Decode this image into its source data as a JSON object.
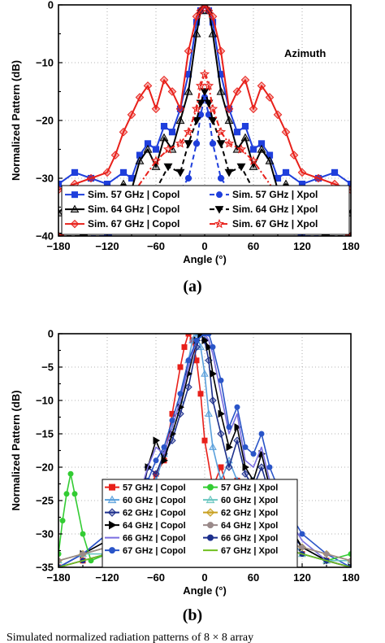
{
  "chart_data": [
    {
      "type": "line",
      "panel_label": "(a)",
      "xlabel": "Angle (°)",
      "ylabel": "Normalized Pattern (dB)",
      "xlim": [
        -180,
        180
      ],
      "ylim": [
        -40,
        0
      ],
      "xticks": [
        -180,
        -120,
        -60,
        0,
        60,
        120,
        180
      ],
      "yticks": [
        -40,
        -30,
        -20,
        -10,
        0
      ],
      "annotation": "Azimuth",
      "grid": "dotted",
      "legend_placement": "bottom",
      "legend_columns": 2,
      "series": [
        {
          "name": "Sim. 57 GHz | Copol",
          "color": "#1f3fdc",
          "marker": "square",
          "dash": "solid",
          "x": [
            -180,
            -160,
            -140,
            -120,
            -100,
            -90,
            -80,
            -70,
            -60,
            -50,
            -40,
            -30,
            -20,
            -10,
            -5,
            0,
            5,
            10,
            20,
            30,
            40,
            50,
            60,
            70,
            80,
            90,
            100,
            120,
            140,
            160,
            180
          ],
          "y": [
            -31,
            -29,
            -30,
            -31,
            -29,
            -30,
            -26,
            -24,
            -25,
            -21,
            -22,
            -18,
            -12,
            -3,
            -1,
            0,
            -1,
            -3,
            -12,
            -18,
            -22,
            -21,
            -25,
            -24,
            -26,
            -30,
            -29,
            -31,
            -30,
            -29,
            -31
          ]
        },
        {
          "name": "Sim. 57 GHz | Xpol",
          "color": "#1f3fdc",
          "marker": "circle",
          "dash": "dash",
          "x": [
            -180,
            -150,
            -120,
            -90,
            -60,
            -45,
            -30,
            -20,
            -10,
            -5,
            0,
            5,
            10,
            20,
            30,
            45,
            60,
            90,
            120,
            150,
            180
          ],
          "y": [
            -40,
            -40,
            -40,
            -39,
            -36,
            -34,
            -32,
            -30,
            -24,
            -19,
            -16,
            -19,
            -24,
            -30,
            -32,
            -34,
            -36,
            -39,
            -40,
            -40,
            -40
          ]
        },
        {
          "name": "Sim. 64 GHz | Copol",
          "color": "#000000",
          "marker": "triangle",
          "dash": "solid",
          "x": [
            -180,
            -160,
            -140,
            -120,
            -100,
            -90,
            -80,
            -70,
            -60,
            -50,
            -40,
            -30,
            -20,
            -10,
            -5,
            0,
            5,
            10,
            20,
            30,
            40,
            50,
            60,
            70,
            80,
            90,
            100,
            120,
            140,
            160,
            180
          ],
          "y": [
            -36,
            -33,
            -34,
            -33,
            -31,
            -32,
            -27,
            -25,
            -28,
            -23,
            -25,
            -20,
            -15,
            -5,
            -1,
            0,
            -1,
            -5,
            -15,
            -20,
            -25,
            -23,
            -28,
            -25,
            -27,
            -32,
            -31,
            -33,
            -34,
            -33,
            -36
          ]
        },
        {
          "name": "Sim. 64 GHz | Xpol",
          "color": "#000000",
          "marker": "triangle-down",
          "dash": "dash",
          "x": [
            -180,
            -150,
            -120,
            -90,
            -60,
            -45,
            -30,
            -20,
            -10,
            -5,
            0,
            5,
            10,
            20,
            30,
            45,
            60,
            90,
            120,
            150,
            180
          ],
          "y": [
            -40,
            -40,
            -39,
            -37,
            -32,
            -28,
            -29,
            -24,
            -20,
            -17,
            -15,
            -17,
            -20,
            -24,
            -29,
            -28,
            -32,
            -37,
            -39,
            -40,
            -40
          ]
        },
        {
          "name": "Sim. 67 GHz | Copol",
          "color": "#e8201a",
          "marker": "diamond",
          "dash": "solid",
          "x": [
            -180,
            -160,
            -140,
            -120,
            -110,
            -100,
            -90,
            -80,
            -70,
            -60,
            -50,
            -40,
            -30,
            -20,
            -10,
            -5,
            0,
            5,
            10,
            20,
            30,
            40,
            50,
            60,
            70,
            80,
            90,
            100,
            110,
            120,
            140,
            160,
            180
          ],
          "y": [
            -32,
            -31,
            -30,
            -29,
            -26,
            -22,
            -19,
            -16,
            -14,
            -18,
            -13,
            -15,
            -18,
            -8,
            -2,
            -1,
            0,
            -1,
            -2,
            -8,
            -18,
            -15,
            -13,
            -18,
            -14,
            -16,
            -19,
            -22,
            -26,
            -29,
            -30,
            -31,
            -32
          ]
        },
        {
          "name": "Sim. 67 GHz | Xpol",
          "color": "#e8201a",
          "marker": "star",
          "dash": "dashdot",
          "x": [
            -180,
            -150,
            -120,
            -90,
            -60,
            -45,
            -30,
            -20,
            -10,
            -5,
            0,
            5,
            10,
            20,
            30,
            45,
            60,
            90,
            120,
            150,
            180
          ],
          "y": [
            -40,
            -39,
            -37,
            -33,
            -27,
            -25,
            -24,
            -22,
            -18,
            -14,
            -12,
            -14,
            -18,
            -22,
            -24,
            -25,
            -27,
            -33,
            -37,
            -39,
            -40
          ]
        }
      ]
    },
    {
      "type": "line",
      "panel_label": "(b)",
      "xlabel": "Angle (°)",
      "ylabel": "Normalized Pattern (dB)",
      "xlim": [
        -180,
        180
      ],
      "ylim": [
        -35,
        0
      ],
      "xticks": [
        -180,
        -120,
        -60,
        0,
        60,
        120,
        180
      ],
      "yticks": [
        -35,
        -30,
        -25,
        -20,
        -15,
        -10,
        -5,
        0
      ],
      "grid": "dotted",
      "legend_placement": "bottom-center",
      "legend_columns": 2,
      "series": [
        {
          "name": "57 GHz | Copol",
          "color": "#e8201a",
          "marker": "square",
          "dash": "solid",
          "x": [
            -180,
            -150,
            -120,
            -100,
            -80,
            -70,
            -60,
            -50,
            -40,
            -30,
            -25,
            -20,
            -15,
            -10,
            -5,
            0,
            10,
            20,
            30,
            40,
            50,
            60,
            70,
            80,
            100,
            120,
            150,
            180
          ],
          "y": [
            -35,
            -34,
            -33,
            -30,
            -27,
            -24,
            -21,
            -19,
            -12,
            -5,
            -2,
            0,
            -1,
            -4,
            -9,
            -16,
            -23,
            -20,
            -24,
            -22,
            -25,
            -26,
            -24,
            -27,
            -30,
            -33,
            -34,
            -35
          ]
        },
        {
          "name": "60 GHz | Copol",
          "color": "#5aa0dc",
          "marker": "triangle",
          "dash": "solid",
          "x": [
            -180,
            -150,
            -120,
            -100,
            -80,
            -70,
            -60,
            -50,
            -40,
            -30,
            -20,
            -15,
            -10,
            -5,
            0,
            5,
            10,
            20,
            30,
            40,
            50,
            60,
            70,
            80,
            100,
            120,
            150,
            180
          ],
          "y": [
            -35,
            -33,
            -32,
            -30,
            -27,
            -24,
            -22,
            -18,
            -14,
            -10,
            -4,
            -1,
            0,
            -2,
            -6,
            -12,
            -17,
            -22,
            -19,
            -22,
            -24,
            -22,
            -25,
            -27,
            -30,
            -33,
            -34,
            -35
          ]
        },
        {
          "name": "62 GHz | Copol",
          "color": "#1c2f8c",
          "marker": "diamond",
          "dash": "solid",
          "x": [
            -180,
            -150,
            -120,
            -100,
            -80,
            -70,
            -60,
            -50,
            -40,
            -30,
            -20,
            -10,
            -5,
            0,
            5,
            10,
            20,
            30,
            40,
            50,
            60,
            70,
            80,
            100,
            120,
            150,
            180
          ],
          "y": [
            -35,
            -33,
            -31,
            -29,
            -26,
            -20,
            -21,
            -18,
            -16,
            -12,
            -8,
            -2,
            0,
            -1,
            -4,
            -10,
            -15,
            -20,
            -16,
            -21,
            -23,
            -20,
            -24,
            -29,
            -32,
            -34,
            -35
          ]
        },
        {
          "name": "64 GHz | Copol",
          "color": "#000000",
          "marker": "triangle-right",
          "dash": "solid",
          "x": [
            -180,
            -150,
            -120,
            -100,
            -80,
            -70,
            -60,
            -50,
            -40,
            -30,
            -20,
            -10,
            -5,
            0,
            5,
            10,
            20,
            30,
            40,
            50,
            60,
            70,
            80,
            100,
            120,
            150,
            180
          ],
          "y": [
            -35,
            -33,
            -31,
            -28,
            -25,
            -20,
            -16,
            -19,
            -15,
            -11,
            -6,
            -1,
            0,
            -1,
            -2,
            -6,
            -12,
            -17,
            -14,
            -20,
            -22,
            -18,
            -23,
            -28,
            -32,
            -34,
            -35
          ]
        },
        {
          "name": "66 GHz | Copol",
          "color": "#7a6ee0",
          "marker": "none",
          "dash": "solid",
          "x": [
            -180,
            -150,
            -120,
            -100,
            -80,
            -70,
            -60,
            -50,
            -40,
            -30,
            -20,
            -10,
            0,
            5,
            10,
            20,
            30,
            40,
            50,
            60,
            70,
            80,
            100,
            120,
            150,
            180
          ],
          "y": [
            -35,
            -33,
            -30,
            -27,
            -24,
            -20,
            -17,
            -18,
            -14,
            -10,
            -5,
            -1,
            0,
            -1,
            -3,
            -9,
            -15,
            -12,
            -19,
            -20,
            -17,
            -22,
            -27,
            -31,
            -34,
            -35
          ]
        },
        {
          "name": "67 GHz | Copol",
          "color": "#2a55c8",
          "marker": "circle",
          "dash": "solid",
          "x": [
            -180,
            -150,
            -120,
            -100,
            -80,
            -70,
            -60,
            -50,
            -40,
            -30,
            -20,
            -10,
            0,
            5,
            10,
            20,
            30,
            40,
            50,
            60,
            70,
            80,
            100,
            120,
            150,
            180
          ],
          "y": [
            -35,
            -33,
            -30,
            -27,
            -24,
            -22,
            -19,
            -17,
            -13,
            -9,
            -4,
            -1,
            0,
            0,
            -2,
            -7,
            -14,
            -11,
            -17,
            -18,
            -15,
            -20,
            -26,
            -30,
            -33,
            -35
          ]
        },
        {
          "name": "57 GHz | Xpol",
          "color": "#33cc33",
          "marker": "circle",
          "dash": "solid",
          "x": [
            -180,
            -175,
            -170,
            -165,
            -160,
            -150,
            -140,
            -120,
            -90,
            -60,
            -30,
            0,
            30,
            60,
            90,
            120,
            150,
            180
          ],
          "y": [
            -33,
            -28,
            -24,
            -21,
            -24,
            -30,
            -34,
            -33,
            -32,
            -30,
            -29,
            -28,
            -29,
            -30,
            -32,
            -33,
            -34,
            -33
          ]
        },
        {
          "name": "60 GHz | Xpol",
          "color": "#6ac6c0",
          "marker": "triangle",
          "dash": "solid",
          "x": [
            -180,
            -150,
            -120,
            -90,
            -60,
            -30,
            0,
            30,
            60,
            90,
            120,
            150,
            180
          ],
          "y": [
            -34,
            -33,
            -33,
            -32,
            -30,
            -28,
            -27,
            -28,
            -30,
            -32,
            -33,
            -34,
            -34
          ]
        },
        {
          "name": "62 GHz | Xpol",
          "color": "#c8a020",
          "marker": "diamond",
          "dash": "solid",
          "x": [
            -180,
            -150,
            -120,
            -90,
            -60,
            -30,
            0,
            30,
            60,
            90,
            120,
            150,
            180
          ],
          "y": [
            -34,
            -33,
            -32,
            -31,
            -28,
            -26,
            -26,
            -27,
            -29,
            -31,
            -32,
            -33,
            -34
          ]
        },
        {
          "name": "64 GHz | Xpol",
          "color": "#9a8a8a",
          "marker": "circle",
          "dash": "solid",
          "x": [
            -180,
            -150,
            -120,
            -90,
            -60,
            -30,
            0,
            30,
            60,
            90,
            120,
            150,
            180
          ],
          "y": [
            -34,
            -33,
            -32,
            -31,
            -29,
            -27,
            -26,
            -27,
            -29,
            -31,
            -32,
            -33,
            -34
          ]
        },
        {
          "name": "66 GHz | Xpol",
          "color": "#1c2f8c",
          "marker": "circle",
          "dash": "solid",
          "x": [
            -180,
            -150,
            -120,
            -90,
            -60,
            -30,
            0,
            30,
            60,
            90,
            120,
            150,
            180
          ],
          "y": [
            -35,
            -34,
            -33,
            -32,
            -30,
            -28,
            -27,
            -28,
            -30,
            -32,
            -33,
            -34,
            -35
          ]
        },
        {
          "name": "67 GHz | Xpol",
          "color": "#70c020",
          "marker": "none",
          "dash": "solid",
          "x": [
            -180,
            -150,
            -120,
            -90,
            -60,
            -30,
            0,
            30,
            60,
            90,
            120,
            150,
            180
          ],
          "y": [
            -35,
            -34,
            -33,
            -32,
            -30,
            -29,
            -28,
            -29,
            -30,
            -32,
            -33,
            -34,
            -35
          ]
        }
      ]
    }
  ],
  "caption": "Simulated normalized radiation patterns of 8 × 8 array"
}
